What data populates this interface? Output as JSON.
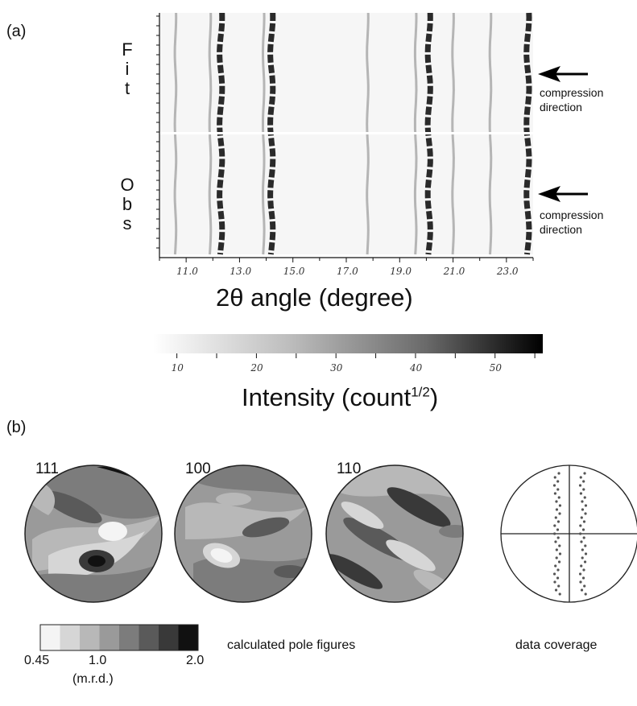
{
  "panel_a": {
    "label": "(a)",
    "fit_letters": [
      "F",
      "i",
      "t"
    ],
    "obs_letters": [
      "O",
      "b",
      "s"
    ],
    "arrow_top": {
      "line1": "compression",
      "line2": "direction"
    },
    "arrow_bottom": {
      "line1": "compression",
      "line2": "direction"
    },
    "x_ticks": [
      "11.0",
      "13.0",
      "15.0",
      "17.0",
      "19.0",
      "21.0",
      "23.0"
    ],
    "x_title_symbol": "2θ",
    "x_title_text": "angle (degree)",
    "x_range": [
      10.0,
      24.0
    ],
    "peaks_deg": [
      10.6,
      11.9,
      12.3,
      13.9,
      14.2,
      17.8,
      19.6,
      20.1,
      21.0,
      22.4,
      23.8
    ],
    "colorbar": {
      "ticks": [
        "10",
        "20",
        "30",
        "40",
        "50"
      ],
      "range": [
        7,
        56
      ],
      "title_main": "Intensity (count",
      "title_sup": "1/2",
      "title_end": ")"
    }
  },
  "panel_b": {
    "label": "(b)",
    "pole_figures": [
      {
        "title": "111"
      },
      {
        "title": "100"
      },
      {
        "title": "110"
      }
    ],
    "scale": {
      "min_label": "0.45",
      "mid_label": "1.0",
      "max_label": "2.0",
      "unit": "(m.r.d.)",
      "levels": [
        "#f4f4f4",
        "#d6d6d6",
        "#b8b8b8",
        "#9a9a9a",
        "#7c7c7c",
        "#5a5a5a",
        "#393939",
        "#111111"
      ]
    },
    "caption_calc": "calculated pole figures",
    "caption_coverage": "data coverage"
  }
}
